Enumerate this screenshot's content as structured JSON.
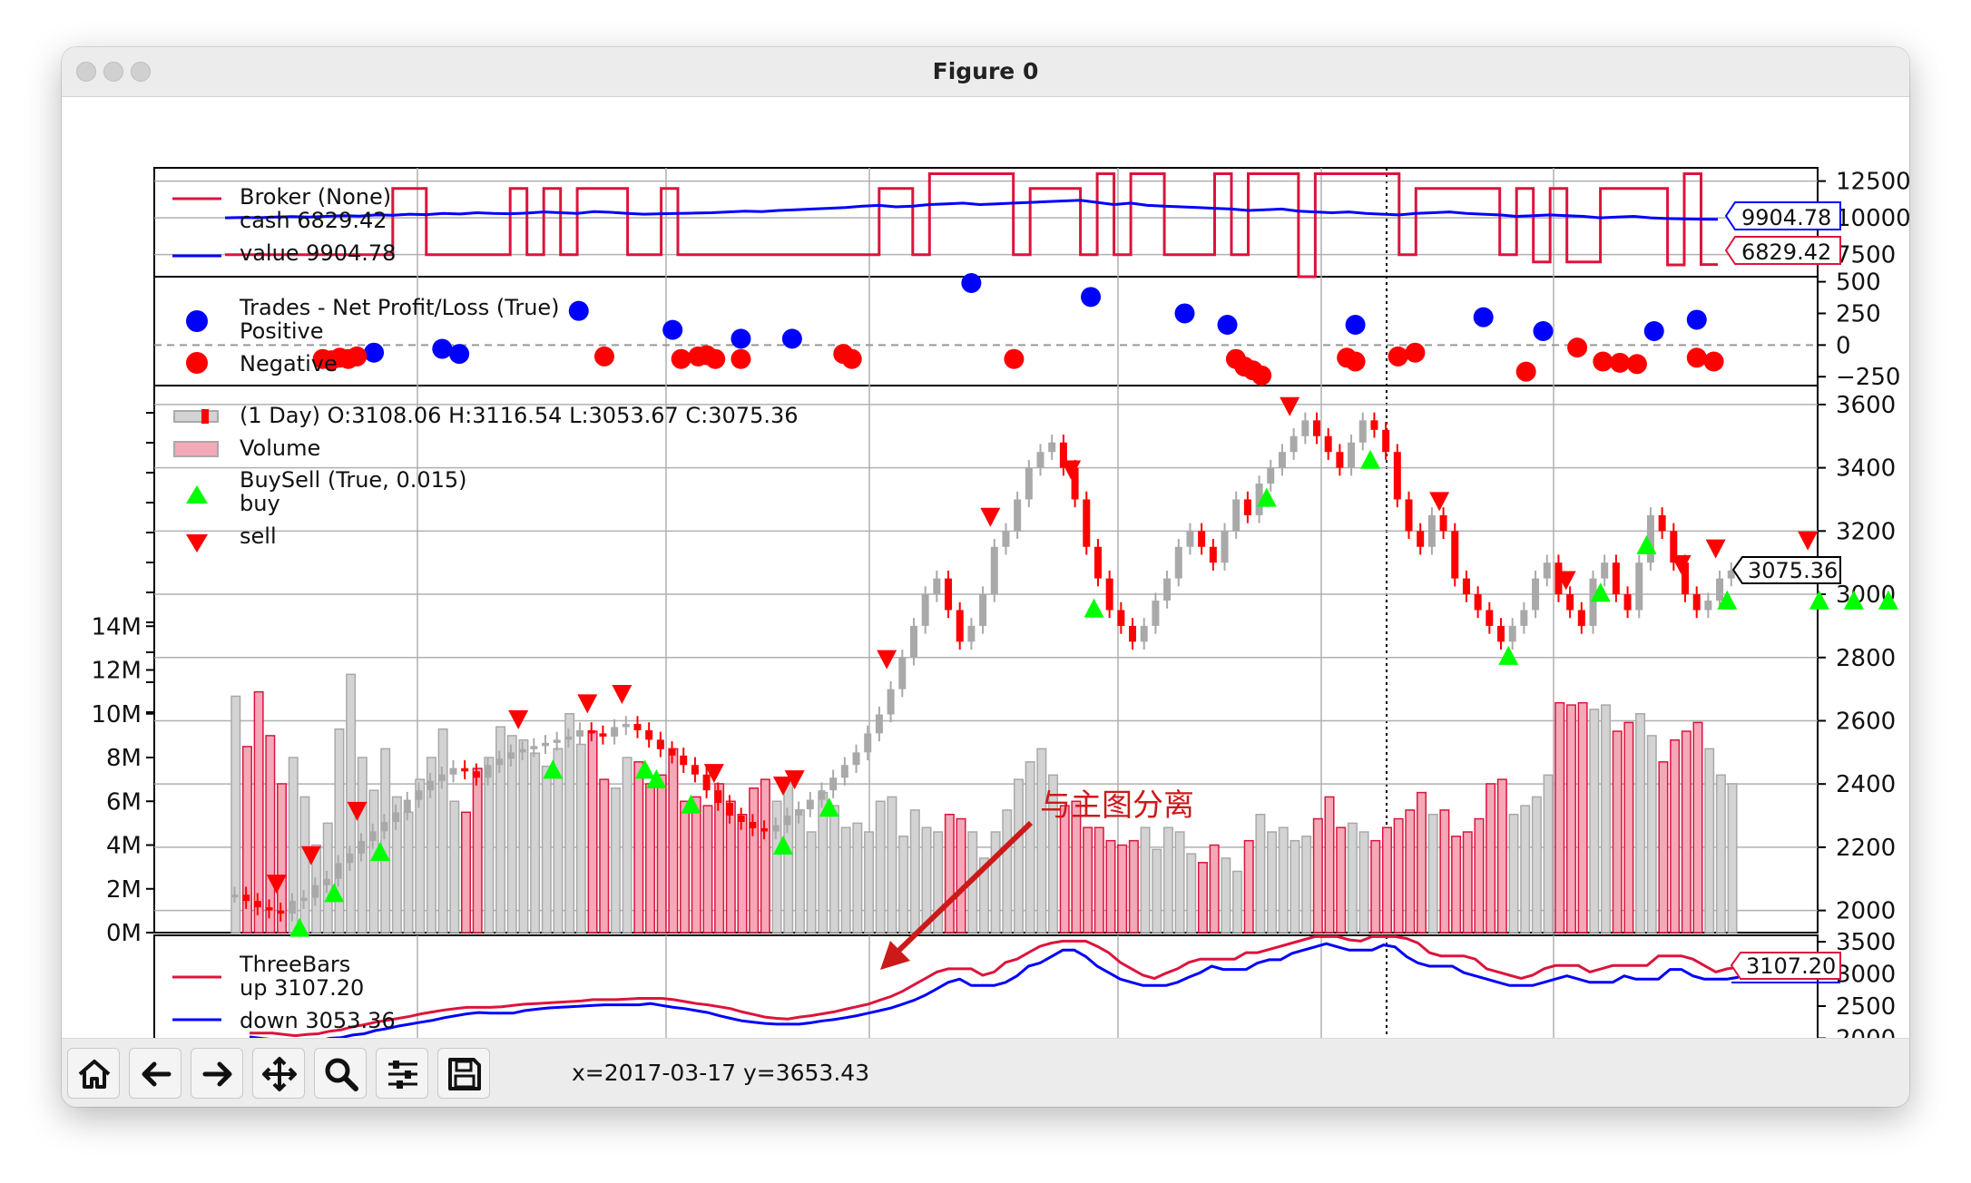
{
  "window": {
    "title": "Figure 0"
  },
  "status": {
    "coords": "x=2017-03-17 y=3653.43"
  },
  "toolbar": {
    "buttons": [
      "home-icon",
      "back-arrow-icon",
      "forward-arrow-icon",
      "pan-move-icon",
      "zoom-magnifier-icon",
      "configure-subplots-icon",
      "save-disk-icon"
    ]
  },
  "colors": {
    "red": "#dc143c",
    "blue": "#0000ff",
    "green": "#00ff00",
    "gray": "#a9a9a9",
    "bar_red": "#ff0000"
  },
  "annotation": {
    "text": "与主图分离",
    "color": "#cc1a1a"
  },
  "chart_data": [
    {
      "type": "line",
      "panel": "broker",
      "legend": [
        "Broker (None)",
        "cash 6829.42",
        "value 9904.78"
      ],
      "series": [
        {
          "name": "cash",
          "color": "#dc143c",
          "last": 6829.42,
          "last_label": "6829.42",
          "values": [
            7500,
            7500,
            7500,
            7500,
            7500,
            7500,
            7500,
            7500,
            7500,
            7500,
            12000,
            12000,
            7500,
            7500,
            7500,
            7500,
            7500,
            12000,
            7500,
            12000,
            7500,
            12000,
            12000,
            12000,
            7500,
            7500,
            12000,
            7500,
            7500,
            7500,
            7500,
            7500,
            7500,
            7500,
            7500,
            7500,
            7500,
            7500,
            7500,
            12000,
            12000,
            7500,
            13000,
            13000,
            13000,
            13000,
            13000,
            7500,
            12000,
            12000,
            12000,
            7500,
            13000,
            7500,
            13000,
            13000,
            7500,
            7500,
            7500,
            13000,
            7500,
            13000,
            13000,
            13000,
            6000,
            13000,
            13000,
            13000,
            13000,
            13000,
            7500,
            12000,
            12000,
            12000,
            12000,
            12000,
            7500,
            12000,
            7000,
            12000,
            7000,
            7000,
            12000,
            12000,
            12000,
            12000,
            6800,
            13000,
            6829,
            6829
          ]
        },
        {
          "name": "value",
          "color": "#0000ff",
          "last": 9904.78,
          "last_label": "9904.78",
          "values": [
            10000,
            10020,
            10010,
            10050,
            10080,
            10060,
            10100,
            10150,
            10120,
            10200,
            10180,
            10250,
            10220,
            10300,
            10260,
            10350,
            10300,
            10280,
            10320,
            10400,
            10350,
            10300,
            10420,
            10380,
            10300,
            10250,
            10280,
            10300,
            10320,
            10350,
            10400,
            10450,
            10420,
            10500,
            10550,
            10600,
            10650,
            10700,
            10800,
            10850,
            10750,
            10800,
            10900,
            10950,
            11000,
            10900,
            10950,
            11000,
            11050,
            11100,
            11150,
            11200,
            11050,
            10900,
            11000,
            10850,
            10800,
            10750,
            10700,
            10650,
            10600,
            10500,
            10550,
            10600,
            10450,
            10400,
            10350,
            10400,
            10300,
            10250,
            10200,
            10300,
            10350,
            10400,
            10300,
            10250,
            10200,
            10100,
            10150,
            10200,
            10150,
            10100,
            10000,
            10050,
            10100,
            10000,
            9950,
            9930,
            9910,
            9904.78
          ]
        }
      ],
      "yticks": [
        7500,
        10000,
        12500
      ],
      "ylim": [
        6000,
        13400
      ]
    },
    {
      "type": "scatter",
      "panel": "trades",
      "legend": [
        "Trades - Net Profit/Loss (True)",
        "Positive",
        "Negative"
      ],
      "series": [
        {
          "name": "Positive",
          "color": "#0000ff",
          "points": [
            [
              10,
              -60
            ],
            [
              18,
              -30
            ],
            [
              20,
              -70
            ],
            [
              34,
              270
            ],
            [
              45,
              120
            ],
            [
              53,
              50
            ],
            [
              59,
              50
            ],
            [
              80,
              490
            ],
            [
              94,
              380
            ],
            [
              105,
              250
            ],
            [
              110,
              160
            ],
            [
              125,
              160
            ],
            [
              140,
              220
            ],
            [
              147,
              110
            ],
            [
              160,
              110
            ],
            [
              165,
              200
            ]
          ]
        },
        {
          "name": "Negative",
          "color": "#ff0000",
          "points": [
            [
              4,
              -110
            ],
            [
              5,
              -120
            ],
            [
              6,
              -100
            ],
            [
              7,
              -110
            ],
            [
              8,
              -90
            ],
            [
              37,
              -90
            ],
            [
              46,
              -110
            ],
            [
              48,
              -90
            ],
            [
              49,
              -80
            ],
            [
              50,
              -110
            ],
            [
              53,
              -110
            ],
            [
              65,
              -70
            ],
            [
              66,
              -110
            ],
            [
              85,
              -110
            ],
            [
              111,
              -110
            ],
            [
              112,
              -170
            ],
            [
              113,
              -200
            ],
            [
              114,
              -240
            ],
            [
              124,
              -100
            ],
            [
              125,
              -130
            ],
            [
              130,
              -90
            ],
            [
              132,
              -60
            ],
            [
              145,
              -210
            ],
            [
              151,
              -20
            ],
            [
              154,
              -130
            ],
            [
              156,
              -140
            ],
            [
              158,
              -150
            ],
            [
              165,
              -100
            ],
            [
              167,
              -130
            ]
          ]
        }
      ],
      "yticks": [
        -250,
        0,
        250,
        500
      ],
      "ylim": [
        -320,
        540
      ]
    },
    {
      "type": "candlestick",
      "panel": "main",
      "legend": [
        " (1 Day) O:3108.06 H:3116.54 L:3053.67 C:3075.36",
        "Volume",
        "BuySell (True, 0.015)",
        "buy",
        "sell"
      ],
      "last_close_label": "3075.36",
      "close": [
        2050,
        2030,
        2010,
        2000,
        1990,
        2030,
        2040,
        2080,
        2100,
        2150,
        2180,
        2220,
        2250,
        2280,
        2310,
        2350,
        2380,
        2410,
        2430,
        2450,
        2440,
        2420,
        2460,
        2480,
        2500,
        2510,
        2520,
        2530,
        2540,
        2550,
        2570,
        2560,
        2550,
        2580,
        2590,
        2570,
        2540,
        2510,
        2490,
        2460,
        2430,
        2380,
        2340,
        2300,
        2280,
        2260,
        2250,
        2270,
        2300,
        2320,
        2350,
        2380,
        2420,
        2460,
        2500,
        2560,
        2620,
        2700,
        2800,
        2900,
        3000,
        3050,
        2950,
        2850,
        2900,
        3000,
        3150,
        3200,
        3300,
        3400,
        3450,
        3480,
        3400,
        3300,
        3150,
        3050,
        2950,
        2900,
        2850,
        2900,
        2980,
        3050,
        3150,
        3200,
        3150,
        3100,
        3200,
        3300,
        3250,
        3350,
        3400,
        3450,
        3500,
        3550,
        3500,
        3450,
        3400,
        3480,
        3550,
        3520,
        3450,
        3300,
        3200,
        3150,
        3250,
        3200,
        3050,
        3000,
        2950,
        2900,
        2850,
        2900,
        2950,
        3050,
        3100,
        3000,
        2950,
        2900,
        3050,
        3100,
        3000,
        2950,
        3100,
        3250,
        3200,
        3100,
        3000,
        2950,
        2980,
        3050,
        3075.36
      ]
    },
    {
      "type": "bar",
      "panel": "volume",
      "yticks": [
        0,
        2000000,
        4000000,
        6000000,
        8000000,
        10000000,
        12000000,
        14000000
      ],
      "ytick_labels": [
        "0M",
        "2M",
        "4M",
        "6M",
        "8M",
        "10M",
        "12M",
        "14M"
      ],
      "price_yticks": [
        2000,
        2200,
        2400,
        2600,
        2800,
        3000,
        3200,
        3400,
        3600
      ],
      "values": [
        10.8,
        8.5,
        11.0,
        9.0,
        6.8,
        8.0,
        6.2,
        4.0,
        5.0,
        9.3,
        11.8,
        8.0,
        6.5,
        8.4,
        6.2,
        5.5,
        7.0,
        8.0,
        9.3,
        6.0,
        5.5,
        7.5,
        8.0,
        9.4,
        9.0,
        8.8,
        8.2,
        7.6,
        8.4,
        10.0,
        8.6,
        9.2,
        7.0,
        6.6,
        8.0,
        7.8,
        6.8,
        7.2,
        8.4,
        6.0,
        6.2,
        5.8,
        6.8,
        6.0,
        5.4,
        6.6,
        7.0,
        6.0,
        6.8,
        5.6,
        4.6,
        6.4,
        5.8,
        4.8,
        5.0,
        4.6,
        6.0,
        6.2,
        4.4,
        5.6,
        4.8,
        4.6,
        5.4,
        5.2,
        4.6,
        3.4,
        4.6,
        5.6,
        7.0,
        7.8,
        8.4,
        7.2,
        5.8,
        6.0,
        4.8,
        4.8,
        4.2,
        4.0,
        4.2,
        4.8,
        3.8,
        4.8,
        4.6,
        3.6,
        3.2,
        4.0,
        3.4,
        2.8,
        4.2,
        5.4,
        4.6,
        4.8,
        4.2,
        4.4,
        5.2,
        6.2,
        4.8,
        5.0,
        4.6,
        4.2,
        4.8,
        5.2,
        5.6,
        6.4,
        5.4,
        5.6,
        4.4,
        4.6,
        5.2,
        6.8,
        7.0,
        5.4,
        5.8,
        6.2,
        7.2,
        10.5,
        10.4,
        10.5,
        10.2,
        10.4,
        9.2,
        9.6,
        10.0,
        9.0,
        7.8,
        8.8,
        9.2,
        9.6,
        8.4,
        7.2,
        6.8
      ]
    },
    {
      "type": "line",
      "panel": "threebars",
      "legend": [
        "ThreeBars",
        "up 3107.20",
        "down 3053.36"
      ],
      "series": [
        {
          "name": "up",
          "color": "#dc143c",
          "last_label": "3107.20"
        },
        {
          "name": "down",
          "color": "#0000ff"
        }
      ],
      "yticks": [
        2000,
        2500,
        3000,
        3500
      ],
      "ylim": [
        1950,
        3600
      ]
    }
  ]
}
